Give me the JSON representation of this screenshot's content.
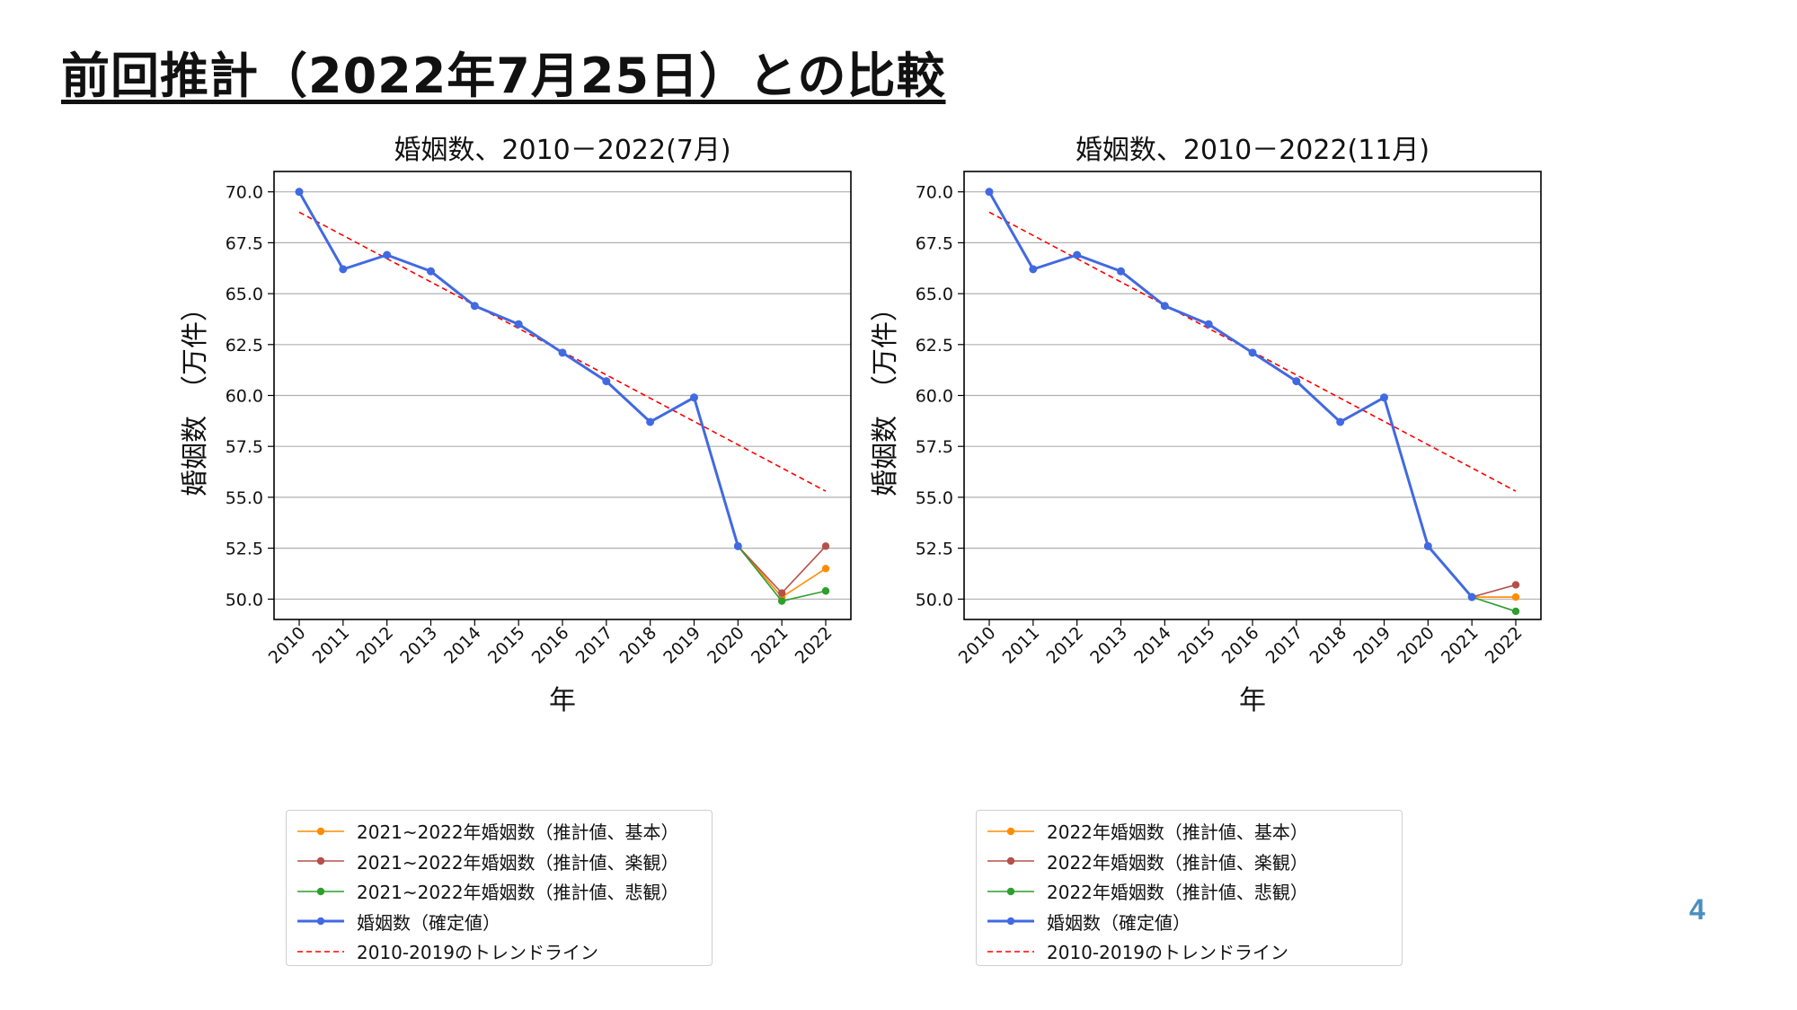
{
  "slide": {
    "title": "前回推計（2022年7月25日）との比較",
    "page_number": "4"
  },
  "colors": {
    "confirmed": "#4169e1",
    "basic": "#ff8c00",
    "optimistic": "#b5504a",
    "pessimistic": "#2e9e2e",
    "trend": "#ff0000"
  },
  "chart_data": [
    {
      "type": "line",
      "title": "婚姻数、2010－2022(7月)",
      "xlabel": "年",
      "ylabel": "婚姻数　（万件）",
      "categories": [
        "2010",
        "2011",
        "2012",
        "2013",
        "2014",
        "2015",
        "2016",
        "2017",
        "2018",
        "2019",
        "2020",
        "2021",
        "2022"
      ],
      "ylim": [
        49.0,
        71.0
      ],
      "yticks": [
        "50.0",
        "52.5",
        "55.0",
        "57.5",
        "60.0",
        "62.5",
        "65.0",
        "67.5",
        "70.0"
      ],
      "grid": "horizontal",
      "legend_placement": "below",
      "series": [
        {
          "name": "2021~2022年婚姻数（推計値、基本）",
          "role": "basic",
          "x": [
            "2020",
            "2021",
            "2022"
          ],
          "values": [
            52.6,
            50.1,
            51.5
          ]
        },
        {
          "name": "2021~2022年婚姻数（推計値、楽観）",
          "role": "optimistic",
          "x": [
            "2020",
            "2021",
            "2022"
          ],
          "values": [
            52.6,
            50.3,
            52.6
          ]
        },
        {
          "name": "2021~2022年婚姻数（推計値、悲観）",
          "role": "pessimistic",
          "x": [
            "2020",
            "2021",
            "2022"
          ],
          "values": [
            52.6,
            49.9,
            50.4
          ]
        },
        {
          "name": "婚姻数（確定値）",
          "role": "confirmed",
          "x": [
            "2010",
            "2011",
            "2012",
            "2013",
            "2014",
            "2015",
            "2016",
            "2017",
            "2018",
            "2019",
            "2020"
          ],
          "values": [
            70.0,
            66.2,
            66.9,
            66.1,
            64.4,
            63.5,
            62.1,
            60.7,
            58.7,
            59.9,
            52.6
          ]
        },
        {
          "name": "2010-2019のトレンドライン",
          "role": "trend",
          "x": [
            "2010",
            "2022"
          ],
          "values": [
            69.0,
            55.3
          ]
        }
      ]
    },
    {
      "type": "line",
      "title": "婚姻数、2010－2022(11月)",
      "xlabel": "年",
      "ylabel": "婚姻数　（万件）",
      "categories": [
        "2010",
        "2011",
        "2012",
        "2013",
        "2014",
        "2015",
        "2016",
        "2017",
        "2018",
        "2019",
        "2020",
        "2021",
        "2022"
      ],
      "ylim": [
        49.0,
        71.0
      ],
      "yticks": [
        "50.0",
        "52.5",
        "55.0",
        "57.5",
        "60.0",
        "62.5",
        "65.0",
        "67.5",
        "70.0"
      ],
      "grid": "horizontal",
      "legend_placement": "below",
      "series": [
        {
          "name": "2022年婚姻数（推計値、基本）",
          "role": "basic",
          "x": [
            "2021",
            "2022"
          ],
          "values": [
            50.1,
            50.1
          ]
        },
        {
          "name": "2022年婚姻数（推計値、楽観）",
          "role": "optimistic",
          "x": [
            "2021",
            "2022"
          ],
          "values": [
            50.1,
            50.7
          ]
        },
        {
          "name": "2022年婚姻数（推計値、悲観）",
          "role": "pessimistic",
          "x": [
            "2021",
            "2022"
          ],
          "values": [
            50.1,
            49.4
          ]
        },
        {
          "name": "婚姻数（確定値）",
          "role": "confirmed",
          "x": [
            "2010",
            "2011",
            "2012",
            "2013",
            "2014",
            "2015",
            "2016",
            "2017",
            "2018",
            "2019",
            "2020",
            "2021"
          ],
          "values": [
            70.0,
            66.2,
            66.9,
            66.1,
            64.4,
            63.5,
            62.1,
            60.7,
            58.7,
            59.9,
            52.6,
            50.1
          ]
        },
        {
          "name": "2010-2019のトレンドライン",
          "role": "trend",
          "x": [
            "2010",
            "2022"
          ],
          "values": [
            69.0,
            55.3
          ]
        }
      ]
    }
  ]
}
